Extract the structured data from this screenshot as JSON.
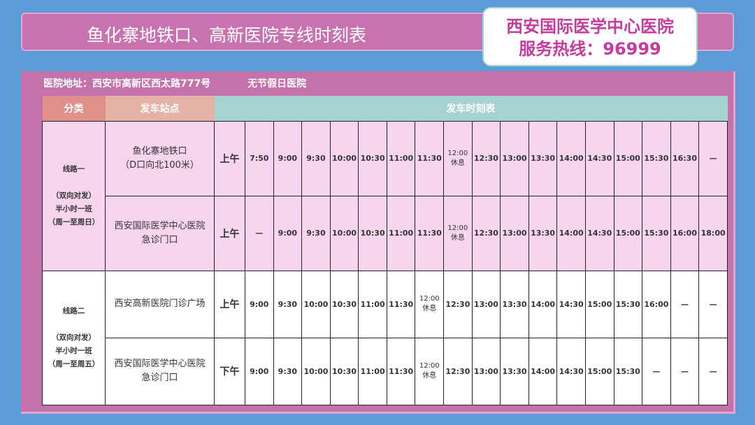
{
  "header": {
    "title": "鱼化寨地铁口、高新医院专线时刻表"
  },
  "hotline": {
    "hospital": "西安国际医学中心医院",
    "phone": "服务热线：96999"
  },
  "info": {
    "address": "医院地址：西安市高新区西太路777号",
    "note": "无节假日医院"
  },
  "table": {
    "headers": [
      "分类",
      "发车站点",
      "发车时刻表"
    ],
    "lines": [
      {
        "category": [
          "线路一",
          "",
          "（双向对发）",
          "半小时一班",
          "（周一至周日）"
        ],
        "rows": [
          {
            "station": [
              "鱼化寨地铁口",
              "（D口向北100米）"
            ],
            "period": "上午",
            "times": [
              "7:50",
              "9:00",
              "9:30",
              "10:00",
              "10:30",
              "11:00",
              "11:30",
              "12:00 休息",
              "12:30",
              "13:00",
              "13:30",
              "14:00",
              "14:30",
              "15:00",
              "15:30",
              "16:30",
              "—"
            ]
          },
          {
            "station": [
              "西安国际医学中心医院",
              "急诊门口"
            ],
            "period": "上午",
            "times": [
              "—",
              "9:00",
              "9:30",
              "10:00",
              "10:30",
              "11:00",
              "11:30",
              "12:00 休息",
              "12:30",
              "13:00",
              "13:30",
              "14:00",
              "14:30",
              "15:00",
              "15:30",
              "16:00",
              "18:00"
            ]
          }
        ]
      },
      {
        "category": [
          "线路二",
          "",
          "（双向对发）",
          "半小时一班",
          "（周一至周五）"
        ],
        "rows": [
          {
            "station": [
              "西安高新医院门诊广场"
            ],
            "period": "上午",
            "times": [
              "9:00",
              "9:30",
              "10:00",
              "10:30",
              "11:00",
              "11:30",
              "12:00 休息",
              "12:30",
              "13:00",
              "13:30",
              "14:00",
              "14:30",
              "15:00",
              "15:30",
              "16:00",
              "—",
              "—"
            ]
          },
          {
            "station": [
              "西安国际医学中心医院",
              "急诊门口"
            ],
            "period": "下午",
            "times": [
              "9:00",
              "9:30",
              "10:00",
              "10:30",
              "11:00",
              "11:30",
              "12:00 休息",
              "12:30",
              "13:00",
              "13:30",
              "14:00",
              "14:30",
              "15:00",
              "15:30",
              "—",
              "—",
              "—"
            ]
          }
        ]
      }
    ]
  },
  "colors": {
    "background": "#5b9bd8",
    "panel": "#c571aa",
    "line1": "#f8d5ef",
    "accent": "#c43c9c"
  }
}
